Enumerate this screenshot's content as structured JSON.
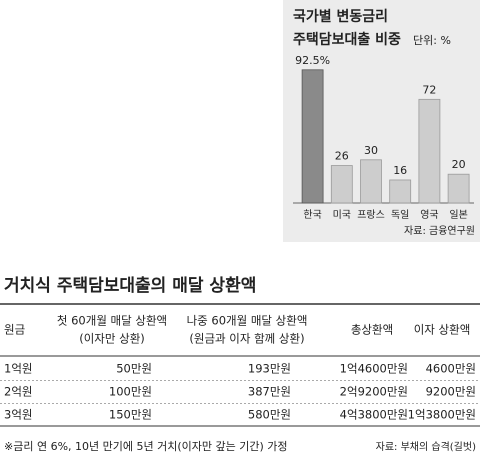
{
  "chart_data": {
    "type": "bar",
    "title": "국가별 변동금리",
    "subtitle": "주택담보대출 비중",
    "unit": "단위: %",
    "categories": [
      "한국",
      "미국",
      "프랑스",
      "독일",
      "영국",
      "일본"
    ],
    "values": [
      92.5,
      26,
      30,
      16,
      72,
      20
    ],
    "value_labels": [
      "92.5%",
      "26",
      "30",
      "16",
      "72",
      "20"
    ],
    "colors": [
      "#8a8a8a",
      "#cdcdcd",
      "#cdcdcd",
      "#cdcdcd",
      "#cdcdcd",
      "#cdcdcd"
    ],
    "source": "자료: 금융연구원"
  },
  "table": {
    "title": "거치식 주택담보대출의 매달 상환액",
    "header": [
      [
        "원금"
      ],
      [
        "첫 60개월 매달 상환액",
        "(이자만 상환)"
      ],
      [
        "나중 60개월 매달 상환액",
        "(원금과 이자 함께 상환)"
      ],
      [
        "총상환액"
      ],
      [
        "이자 상환액"
      ]
    ],
    "rows": [
      [
        "1억원",
        "50만원",
        "193만원",
        "1억4600만원",
        "4600만원"
      ],
      [
        "2억원",
        "100만원",
        "387만원",
        "2억9200만원",
        "9200만원"
      ],
      [
        "3억원",
        "150만원",
        "580만원",
        "4억3800만원",
        "1억3800만원"
      ]
    ],
    "note": "※금리 연 6%, 10년 만기에 5년 거치(이자만 갚는 기간) 가정",
    "source": "자료: 부채의 습격(길벗)"
  }
}
